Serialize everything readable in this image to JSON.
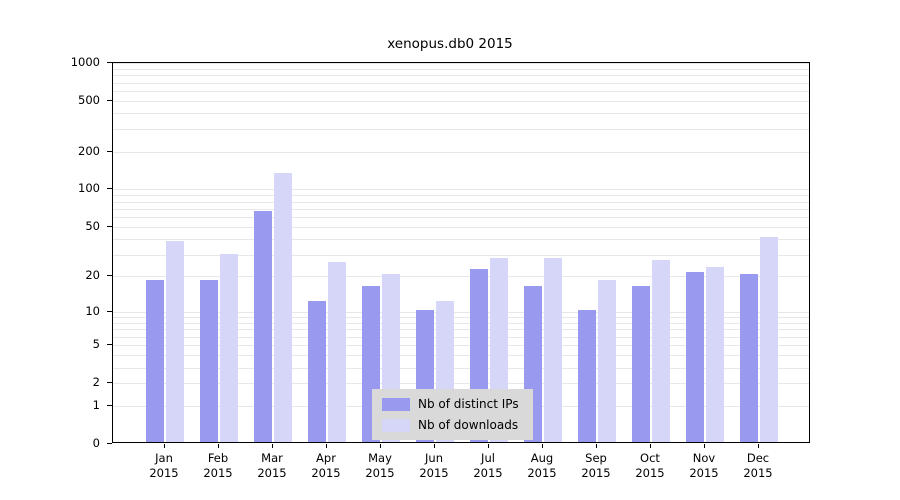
{
  "title": "xenopus.db0 2015",
  "colors": {
    "ips": "#9999f0",
    "downloads": "#d6d6f8",
    "legend_bg": "#d9d9d9",
    "grid": "#e7e7e7"
  },
  "chart_data": {
    "type": "bar",
    "title": "xenopus.db0 2015",
    "scale": "log1p",
    "year_label": "2015",
    "categories": [
      "Jan",
      "Feb",
      "Mar",
      "Apr",
      "May",
      "Jun",
      "Jul",
      "Aug",
      "Sep",
      "Oct",
      "Nov",
      "Dec"
    ],
    "series": [
      {
        "name": "Nb of distinct IPs",
        "values": [
          18,
          18,
          65,
          12,
          16,
          10,
          22,
          16,
          10,
          16,
          21,
          20
        ]
      },
      {
        "name": "Nb of downloads",
        "values": [
          37,
          29,
          130,
          25,
          20,
          12,
          27,
          27,
          18,
          26,
          23,
          40
        ]
      }
    ],
    "yticks": [
      1000,
      500,
      200,
      100,
      50,
      20,
      10,
      5,
      2,
      1,
      0
    ],
    "ylim": [
      0,
      1000
    ],
    "grid": "horizontal-minor",
    "legend_position": "bottom-center-inside",
    "xlabel": "",
    "ylabel": ""
  }
}
